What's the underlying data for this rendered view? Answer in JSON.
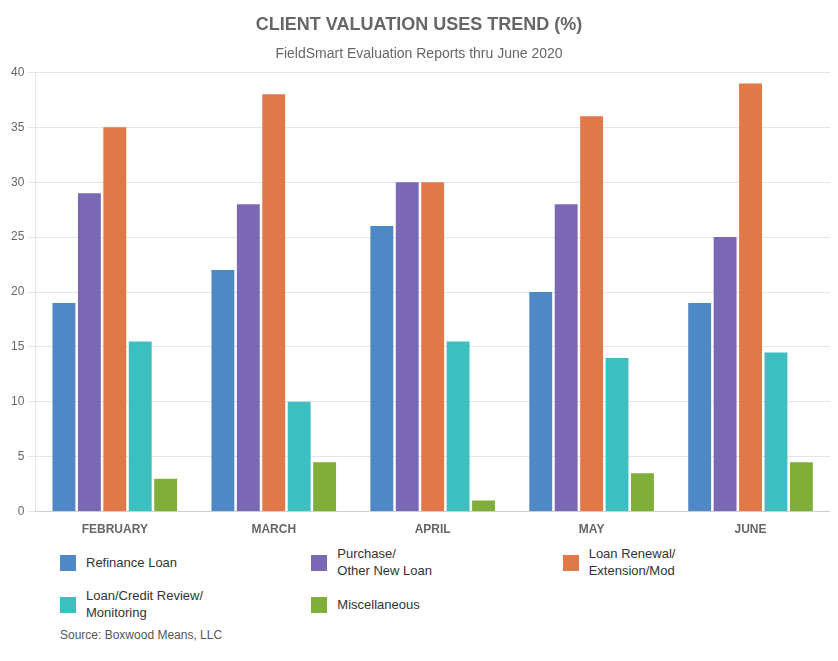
{
  "chart_data": {
    "type": "bar",
    "title": "CLIENT VALUATION USES TREND (%)",
    "subtitle": "FieldSmart Evaluation Reports thru June 2020",
    "source": "Source: Boxwood Means, LLC",
    "categories": [
      "FEBRUARY",
      "MARCH",
      "APRIL",
      "MAY",
      "JUNE"
    ],
    "series": [
      {
        "name": "Refinance Loan",
        "color": "#4E88C7",
        "values": [
          19,
          22,
          26,
          20,
          19
        ]
      },
      {
        "name": "Purchase/\nOther New Loan",
        "color": "#7B68B5",
        "values": [
          29,
          28,
          30,
          28,
          25
        ]
      },
      {
        "name": "Loan Renewal/\nExtension/Mod",
        "color": "#E07848",
        "values": [
          35,
          38,
          30,
          36,
          39
        ]
      },
      {
        "name": "Loan/Credit Review/\nMonitoring",
        "color": "#3DBFBF",
        "values": [
          15.5,
          10,
          15.5,
          14,
          14.5
        ]
      },
      {
        "name": "Miscellaneous",
        "color": "#7FAF38",
        "values": [
          3,
          4.5,
          1,
          3.5,
          4.5
        ]
      }
    ],
    "ylim": [
      0,
      40
    ],
    "yticks": [
      0,
      5,
      10,
      15,
      20,
      25,
      30,
      35,
      40
    ],
    "grid": true,
    "legend": "bottom"
  }
}
